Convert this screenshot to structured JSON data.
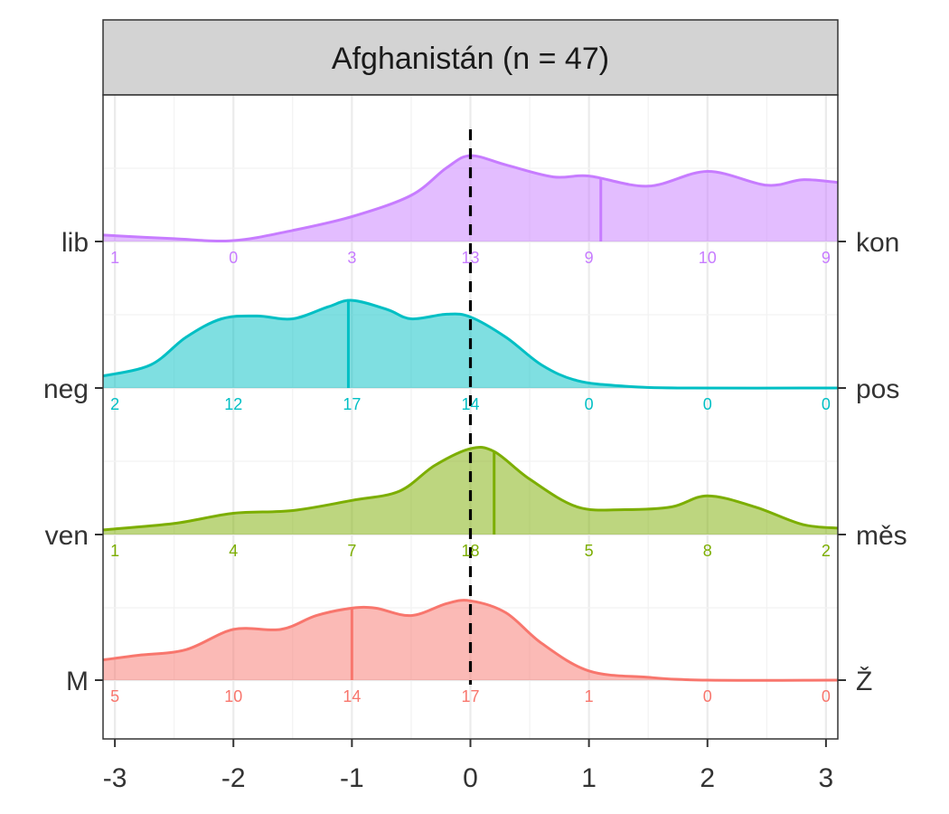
{
  "chart_data": {
    "type": "ridgeline-density",
    "title": "Afghanistán (n = 47)",
    "xlim": [
      -3.1,
      3.1
    ],
    "xticks": [
      -3,
      -2,
      -1,
      0,
      1,
      2,
      3
    ],
    "reference_line_x": 0,
    "count_positions": [
      -3,
      -2,
      -1,
      0,
      1,
      2,
      3
    ],
    "series": [
      {
        "key": "lib",
        "left_label": "lib",
        "right_label": "kon",
        "color": "#C77CFF",
        "median": 1.1,
        "counts": [
          1,
          0,
          3,
          13,
          9,
          10,
          9
        ],
        "density": [
          [
            -3.1,
            0.07
          ],
          [
            -2.5,
            0.03
          ],
          [
            -2.0,
            0.01
          ],
          [
            -1.5,
            0.12
          ],
          [
            -1.0,
            0.27
          ],
          [
            -0.5,
            0.5
          ],
          [
            -0.2,
            0.8
          ],
          [
            0,
            0.93
          ],
          [
            0.3,
            0.83
          ],
          [
            0.7,
            0.7
          ],
          [
            1.0,
            0.71
          ],
          [
            1.5,
            0.6
          ],
          [
            2.0,
            0.76
          ],
          [
            2.5,
            0.61
          ],
          [
            2.8,
            0.67
          ],
          [
            3.1,
            0.64
          ]
        ]
      },
      {
        "key": "neg",
        "left_label": "neg",
        "right_label": "pos",
        "color": "#00BFC4",
        "median": -1.03,
        "counts": [
          2,
          12,
          17,
          14,
          0,
          0,
          0
        ],
        "density": [
          [
            -3.1,
            0.13
          ],
          [
            -2.7,
            0.25
          ],
          [
            -2.4,
            0.55
          ],
          [
            -2.1,
            0.75
          ],
          [
            -1.8,
            0.78
          ],
          [
            -1.5,
            0.75
          ],
          [
            -1.2,
            0.88
          ],
          [
            -1.0,
            0.95
          ],
          [
            -0.7,
            0.85
          ],
          [
            -0.5,
            0.75
          ],
          [
            -0.2,
            0.8
          ],
          [
            0.0,
            0.77
          ],
          [
            0.3,
            0.55
          ],
          [
            0.6,
            0.25
          ],
          [
            0.9,
            0.08
          ],
          [
            1.3,
            0.02
          ],
          [
            1.8,
            0.0
          ],
          [
            3.1,
            0.0
          ]
        ]
      },
      {
        "key": "ven",
        "left_label": "ven",
        "right_label": "měs",
        "color": "#7CAE00",
        "median": 0.2,
        "counts": [
          1,
          4,
          7,
          18,
          5,
          8,
          2
        ],
        "density": [
          [
            -3.1,
            0.05
          ],
          [
            -2.5,
            0.12
          ],
          [
            -2.0,
            0.23
          ],
          [
            -1.5,
            0.26
          ],
          [
            -1.0,
            0.37
          ],
          [
            -0.6,
            0.47
          ],
          [
            -0.3,
            0.75
          ],
          [
            0.0,
            0.93
          ],
          [
            0.2,
            0.9
          ],
          [
            0.5,
            0.6
          ],
          [
            0.9,
            0.3
          ],
          [
            1.3,
            0.27
          ],
          [
            1.7,
            0.3
          ],
          [
            2.0,
            0.42
          ],
          [
            2.4,
            0.3
          ],
          [
            2.8,
            0.11
          ],
          [
            3.1,
            0.07
          ]
        ]
      },
      {
        "key": "M",
        "left_label": "M",
        "right_label": "Ž",
        "color": "#F8766D",
        "median": -1.0,
        "counts": [
          5,
          10,
          14,
          17,
          1,
          0,
          0
        ],
        "density": [
          [
            -3.1,
            0.22
          ],
          [
            -2.8,
            0.27
          ],
          [
            -2.4,
            0.33
          ],
          [
            -2.0,
            0.55
          ],
          [
            -1.6,
            0.55
          ],
          [
            -1.3,
            0.7
          ],
          [
            -1.0,
            0.78
          ],
          [
            -0.8,
            0.78
          ],
          [
            -0.5,
            0.7
          ],
          [
            -0.2,
            0.83
          ],
          [
            0.0,
            0.86
          ],
          [
            0.3,
            0.73
          ],
          [
            0.6,
            0.4
          ],
          [
            1.0,
            0.1
          ],
          [
            1.5,
            0.03
          ],
          [
            2.0,
            0.0
          ],
          [
            3.1,
            0.0
          ]
        ]
      }
    ]
  }
}
